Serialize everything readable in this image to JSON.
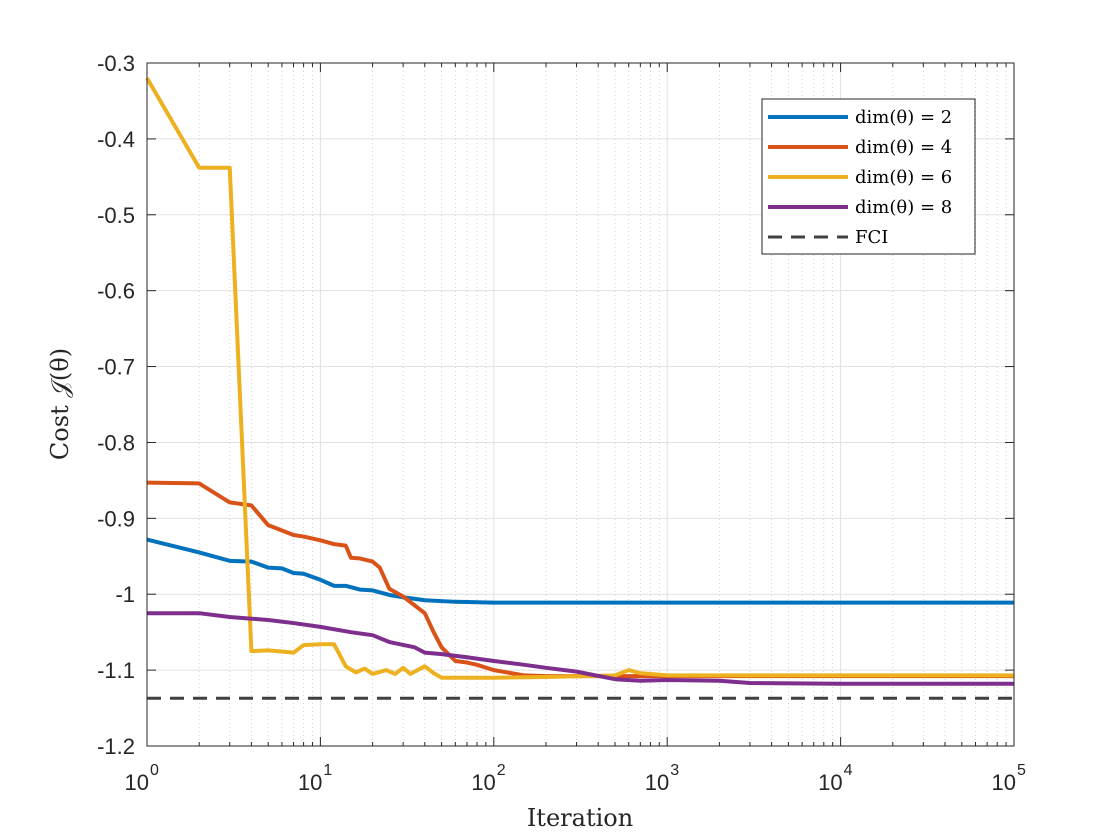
{
  "chart_data": {
    "type": "line",
    "title": "",
    "xlabel": "Iteration",
    "ylabel": "Cost 𝒥(θ)",
    "xscale": "log",
    "xlim": [
      1,
      100000
    ],
    "ylim": [
      -1.2,
      -0.3
    ],
    "grid": true,
    "legend_position": "top-right",
    "x_ticks": [
      {
        "value": 1,
        "base": "10",
        "exp": "0"
      },
      {
        "value": 10,
        "base": "10",
        "exp": "1"
      },
      {
        "value": 100,
        "base": "10",
        "exp": "2"
      },
      {
        "value": 1000,
        "base": "10",
        "exp": "3"
      },
      {
        "value": 10000,
        "base": "10",
        "exp": "4"
      },
      {
        "value": 100000,
        "base": "10",
        "exp": "5"
      }
    ],
    "y_ticks": [
      {
        "value": -0.3,
        "label": "-0.3"
      },
      {
        "value": -0.4,
        "label": "-0.4"
      },
      {
        "value": -0.5,
        "label": "-0.5"
      },
      {
        "value": -0.6,
        "label": "-0.6"
      },
      {
        "value": -0.7,
        "label": "-0.7"
      },
      {
        "value": -0.8,
        "label": "-0.8"
      },
      {
        "value": -0.9,
        "label": "-0.9"
      },
      {
        "value": -1.0,
        "label": "-1"
      },
      {
        "value": -1.1,
        "label": "-1.1"
      },
      {
        "value": -1.2,
        "label": "-1.2"
      }
    ],
    "series": [
      {
        "name": "dim(θ) = 2",
        "color": "#0072BD",
        "dash": false,
        "points": [
          [
            1,
            -0.928
          ],
          [
            2,
            -0.945
          ],
          [
            3,
            -0.956
          ],
          [
            4,
            -0.957
          ],
          [
            5,
            -0.965
          ],
          [
            6,
            -0.966
          ],
          [
            7,
            -0.972
          ],
          [
            8,
            -0.973
          ],
          [
            10,
            -0.981
          ],
          [
            12,
            -0.989
          ],
          [
            14,
            -0.989
          ],
          [
            17,
            -0.994
          ],
          [
            20,
            -0.995
          ],
          [
            25,
            -1.001
          ],
          [
            30,
            -1.004
          ],
          [
            40,
            -1.008
          ],
          [
            60,
            -1.01
          ],
          [
            100,
            -1.011
          ],
          [
            1000,
            -1.011
          ],
          [
            100000,
            -1.011
          ]
        ]
      },
      {
        "name": "dim(θ) = 4",
        "color": "#D95319",
        "dash": false,
        "points": [
          [
            1,
            -0.853
          ],
          [
            2,
            -0.854
          ],
          [
            3,
            -0.879
          ],
          [
            4,
            -0.883
          ],
          [
            5,
            -0.909
          ],
          [
            7,
            -0.922
          ],
          [
            8,
            -0.924
          ],
          [
            10,
            -0.929
          ],
          [
            12,
            -0.934
          ],
          [
            14,
            -0.936
          ],
          [
            15,
            -0.952
          ],
          [
            17,
            -0.953
          ],
          [
            20,
            -0.957
          ],
          [
            22,
            -0.965
          ],
          [
            25,
            -0.993
          ],
          [
            30,
            -1.003
          ],
          [
            40,
            -1.025
          ],
          [
            45,
            -1.05
          ],
          [
            50,
            -1.07
          ],
          [
            60,
            -1.088
          ],
          [
            70,
            -1.09
          ],
          [
            80,
            -1.093
          ],
          [
            100,
            -1.1
          ],
          [
            150,
            -1.107
          ],
          [
            200,
            -1.108
          ],
          [
            1000,
            -1.108
          ],
          [
            100000,
            -1.108
          ]
        ]
      },
      {
        "name": "dim(θ) = 6",
        "color": "#EDB120",
        "dash": false,
        "points": [
          [
            1,
            -0.32
          ],
          [
            2,
            -0.438
          ],
          [
            3,
            -0.438
          ],
          [
            4,
            -1.075
          ],
          [
            5,
            -1.074
          ],
          [
            7,
            -1.077
          ],
          [
            8,
            -1.067
          ],
          [
            10,
            -1.066
          ],
          [
            12,
            -1.066
          ],
          [
            14,
            -1.095
          ],
          [
            16,
            -1.103
          ],
          [
            18,
            -1.098
          ],
          [
            20,
            -1.105
          ],
          [
            24,
            -1.1
          ],
          [
            27,
            -1.105
          ],
          [
            30,
            -1.097
          ],
          [
            33,
            -1.105
          ],
          [
            40,
            -1.095
          ],
          [
            45,
            -1.104
          ],
          [
            50,
            -1.11
          ],
          [
            100,
            -1.11
          ],
          [
            200,
            -1.109
          ],
          [
            500,
            -1.107
          ],
          [
            600,
            -1.1
          ],
          [
            700,
            -1.104
          ],
          [
            1000,
            -1.107
          ],
          [
            100000,
            -1.107
          ]
        ]
      },
      {
        "name": "dim(θ) = 8",
        "color": "#7E2F8E",
        "dash": false,
        "points": [
          [
            1,
            -1.025
          ],
          [
            2,
            -1.025
          ],
          [
            3,
            -1.03
          ],
          [
            5,
            -1.034
          ],
          [
            7,
            -1.038
          ],
          [
            10,
            -1.043
          ],
          [
            15,
            -1.05
          ],
          [
            20,
            -1.054
          ],
          [
            25,
            -1.063
          ],
          [
            35,
            -1.07
          ],
          [
            40,
            -1.077
          ],
          [
            50,
            -1.079
          ],
          [
            70,
            -1.083
          ],
          [
            100,
            -1.088
          ],
          [
            150,
            -1.093
          ],
          [
            200,
            -1.097
          ],
          [
            300,
            -1.102
          ],
          [
            500,
            -1.112
          ],
          [
            700,
            -1.114
          ],
          [
            1000,
            -1.113
          ],
          [
            2000,
            -1.114
          ],
          [
            3000,
            -1.117
          ],
          [
            10000,
            -1.118
          ],
          [
            100000,
            -1.118
          ]
        ]
      },
      {
        "name": "FCI",
        "color": "#404040",
        "dash": true,
        "points": [
          [
            1,
            -1.137
          ],
          [
            100000,
            -1.137
          ]
        ]
      }
    ]
  }
}
